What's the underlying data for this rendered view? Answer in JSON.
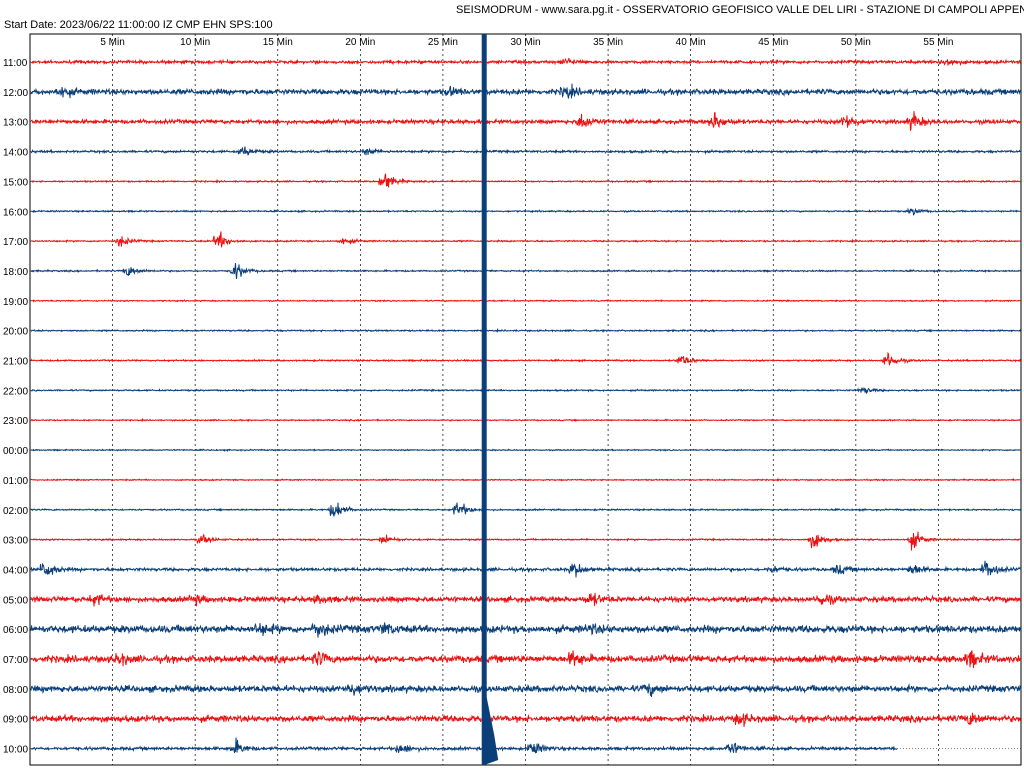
{
  "header": {
    "title": "SEISMODRUM - www.sara.pg.it - OSSERVATORIO GEOFISICO VALLE DEL LIRI - STAZIONE DI CAMPOLI APPENNINO",
    "start_info": "Start Date: 2023/06/22 11:00:00 IZ CMP EHN SPS:100"
  },
  "chart_data": {
    "type": "line",
    "x_ticks": [
      "5 Min",
      "10 Min",
      "15 Min",
      "20 Min",
      "25 Min",
      "30 Min",
      "35 Min",
      "40 Min",
      "45 Min",
      "50 Min",
      "55 Min"
    ],
    "x_range_minutes": [
      0,
      60
    ],
    "grid": true,
    "trace_colors": [
      "#ee1111",
      "#0a3f7a"
    ],
    "rows": [
      {
        "label": "11:00",
        "amp": 1.2,
        "events": [
          [
            32.5,
            3
          ],
          [
            55.5,
            4
          ]
        ]
      },
      {
        "label": "12:00",
        "amp": 2.2,
        "events": [
          [
            2,
            4
          ],
          [
            25.5,
            3
          ],
          [
            32.5,
            5
          ]
        ]
      },
      {
        "label": "13:00",
        "amp": 1.6,
        "events": [
          [
            33.5,
            7
          ],
          [
            41.5,
            7
          ],
          [
            49.5,
            6
          ],
          [
            53.5,
            7
          ]
        ]
      },
      {
        "label": "14:00",
        "amp": 0.9,
        "events": [
          [
            13,
            4
          ],
          [
            20.5,
            3
          ]
        ]
      },
      {
        "label": "15:00",
        "amp": 0.6,
        "events": [
          [
            21.5,
            8
          ]
        ]
      },
      {
        "label": "16:00",
        "amp": 0.6,
        "events": [
          [
            53.5,
            3
          ]
        ]
      },
      {
        "label": "17:00",
        "amp": 0.6,
        "events": [
          [
            5.5,
            5
          ],
          [
            11.5,
            7
          ],
          [
            19,
            3
          ]
        ]
      },
      {
        "label": "18:00",
        "amp": 0.6,
        "events": [
          [
            6,
            5
          ],
          [
            12.5,
            7
          ]
        ]
      },
      {
        "label": "19:00",
        "amp": 0.5,
        "events": []
      },
      {
        "label": "20:00",
        "amp": 0.6,
        "events": []
      },
      {
        "label": "21:00",
        "amp": 0.6,
        "events": [
          [
            39.5,
            5
          ],
          [
            52,
            7
          ]
        ]
      },
      {
        "label": "22:00",
        "amp": 0.6,
        "events": [
          [
            50.5,
            3
          ]
        ]
      },
      {
        "label": "23:00",
        "amp": 0.5,
        "events": []
      },
      {
        "label": "00:00",
        "amp": 0.5,
        "events": []
      },
      {
        "label": "01:00",
        "amp": 0.5,
        "events": []
      },
      {
        "label": "02:00",
        "amp": 0.6,
        "events": [
          [
            18.5,
            8
          ],
          [
            26,
            7
          ]
        ]
      },
      {
        "label": "03:00",
        "amp": 0.6,
        "events": [
          [
            10.5,
            4
          ],
          [
            21.5,
            4
          ],
          [
            47.5,
            8
          ],
          [
            53.5,
            8
          ]
        ]
      },
      {
        "label": "04:00",
        "amp": 1.2,
        "events": [
          [
            1,
            8
          ],
          [
            33,
            6
          ],
          [
            45,
            3
          ],
          [
            49,
            4
          ],
          [
            53.5,
            5
          ],
          [
            58,
            8
          ]
        ]
      },
      {
        "label": "05:00",
        "amp": 2.2,
        "events": [
          [
            4,
            4
          ],
          [
            10,
            3
          ],
          [
            17.5,
            3
          ],
          [
            34,
            5
          ],
          [
            48,
            5
          ]
        ]
      },
      {
        "label": "06:00",
        "amp": 3.0,
        "events": [
          [
            14,
            4
          ],
          [
            17.5,
            6
          ],
          [
            21.5,
            4
          ],
          [
            34,
            3
          ]
        ]
      },
      {
        "label": "07:00",
        "amp": 2.8,
        "events": [
          [
            5.5,
            4
          ],
          [
            17.5,
            5
          ],
          [
            33,
            6
          ],
          [
            57,
            6
          ]
        ]
      },
      {
        "label": "08:00",
        "amp": 2.6,
        "events": [
          [
            19.5,
            5
          ],
          [
            37.5,
            4
          ]
        ]
      },
      {
        "label": "09:00",
        "amp": 2.6,
        "events": [
          [
            43,
            5
          ],
          [
            57,
            5
          ]
        ]
      },
      {
        "label": "10:00",
        "amp": 1.2,
        "events": [
          [
            12.5,
            6
          ],
          [
            22.5,
            5
          ],
          [
            30.5,
            6
          ],
          [
            42.5,
            6
          ]
        ]
      }
    ],
    "big_event": {
      "minute": 27.5,
      "start_row": 0
    }
  }
}
